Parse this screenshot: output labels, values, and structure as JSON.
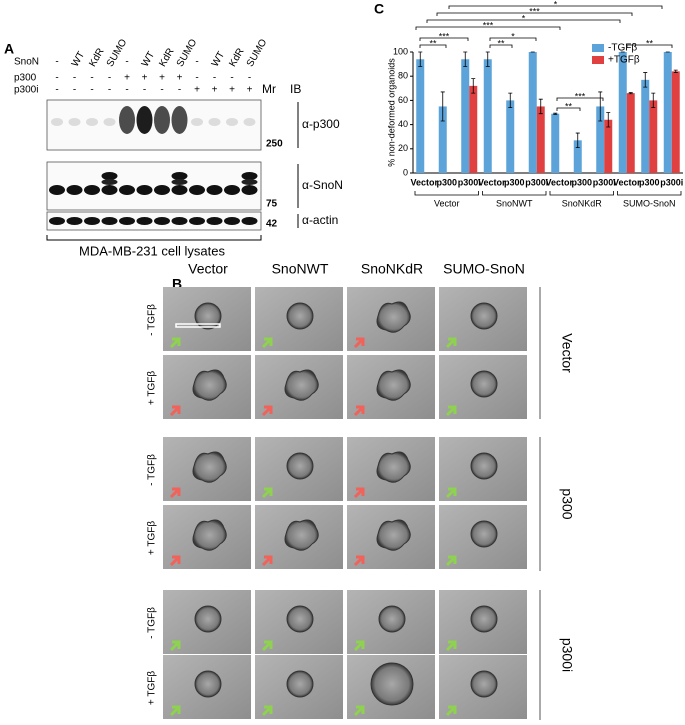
{
  "panel_a": {
    "label": "A",
    "rows": [
      {
        "name": "SnoN",
        "lanes": [
          "-",
          "WT",
          "KdR",
          "SUMO",
          "-",
          "WT",
          "KdR",
          "SUMO",
          "-",
          "WT",
          "KdR",
          "SUMO"
        ]
      },
      {
        "name": "p300",
        "lanes": [
          "-",
          "-",
          "-",
          "-",
          "+",
          "+",
          "+",
          "+",
          "-",
          "-",
          "-",
          "-"
        ]
      },
      {
        "name": "p300i",
        "lanes": [
          "-",
          "-",
          "-",
          "-",
          "-",
          "-",
          "-",
          "-",
          "+",
          "+",
          "+",
          "+"
        ]
      }
    ],
    "mr": "Mr",
    "ib": "IB",
    "markers": [
      "250",
      "75",
      "42"
    ],
    "antibodies": [
      "α-p300",
      "α-SnoN",
      "α-actin"
    ],
    "caption": "MDA-MB-231 cell lysates"
  },
  "panel_b": {
    "label": "B",
    "columns": [
      "Vector",
      "SnoNWT",
      "SnoNKdR",
      "SUMO-SnoN"
    ],
    "rows": [
      "- TGFβ",
      "+ TGFβ",
      "- TGFβ",
      "+ TGFβ",
      "- TGFβ",
      "+ TGFβ"
    ],
    "groups": [
      "Vector",
      "p300",
      "p300i"
    ]
  },
  "chart_data": {
    "type": "bar",
    "label": "C",
    "y_label": "% non-deformed organoids",
    "categories": [
      "Vector",
      "p300",
      "p300i",
      "Vector",
      "p300",
      "p300i",
      "Vector",
      "p300",
      "p300i",
      "Vector",
      "p300",
      "p300i"
    ],
    "groups": [
      "Vector",
      "SnoNWT",
      "SnoNKdR",
      "SUMO-SnoN"
    ],
    "series": [
      {
        "name": "-TGFβ",
        "color": "#5ba3d9",
        "values": [
          94,
          55,
          94,
          94,
          60,
          100,
          49,
          27,
          55,
          100,
          77,
          100
        ],
        "errors": [
          6,
          12,
          6,
          6,
          6,
          0,
          0.5,
          6,
          12,
          0,
          6,
          0
        ]
      },
      {
        "name": "+TGFβ",
        "color": "#e04040",
        "values": [
          null,
          null,
          72,
          null,
          null,
          55,
          null,
          null,
          44,
          66,
          60,
          84
        ],
        "errors": [
          null,
          null,
          6,
          null,
          null,
          6,
          null,
          null,
          6,
          0.5,
          6,
          1
        ]
      }
    ],
    "ylim": [
      0,
      100
    ],
    "yticks": [
      0,
      20,
      40,
      60,
      80,
      100
    ],
    "legend": "upper right",
    "annotations": [
      "*",
      "***",
      "*",
      "***",
      "**",
      "***",
      "**",
      "*",
      "**",
      "***",
      "**"
    ]
  }
}
